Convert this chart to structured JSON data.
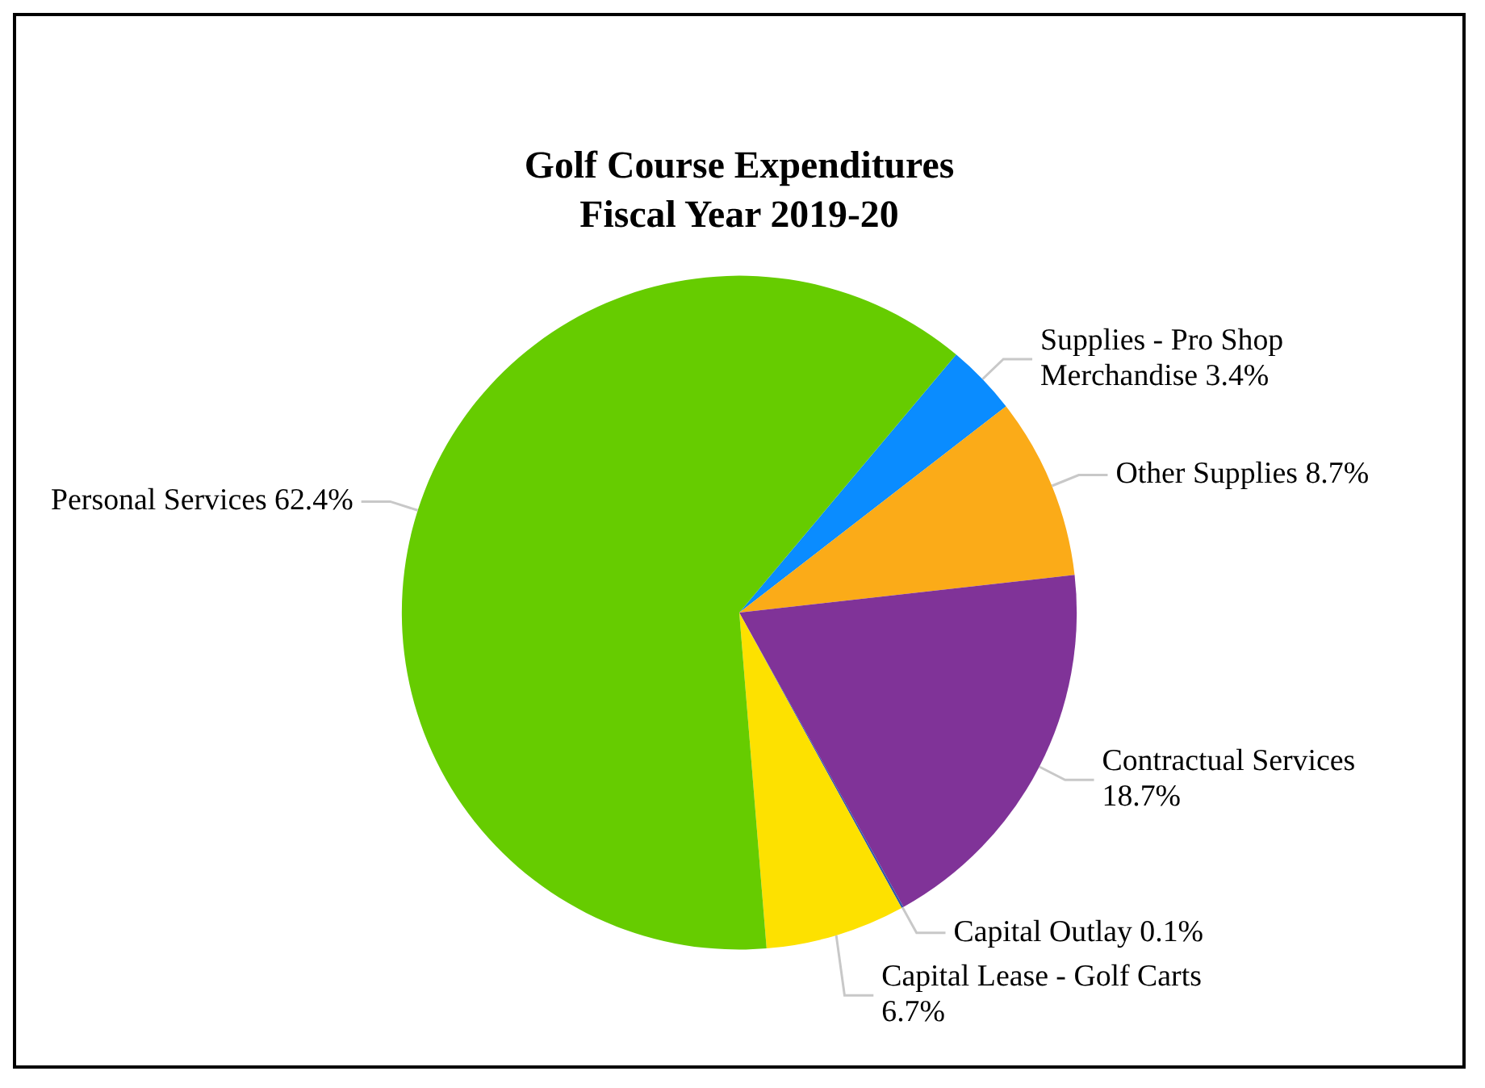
{
  "chart_data": {
    "type": "pie",
    "title": "Golf Course Expenditures",
    "subtitle": "Fiscal Year 2019-20",
    "categories": [
      "Supplies - Pro Shop Merchandise",
      "Other Supplies",
      "Contractual Services",
      "Capital Outlay",
      "Capital Lease - Golf Carts",
      "Personal Services"
    ],
    "values": [
      3.4,
      8.7,
      18.7,
      0.1,
      6.7,
      62.4
    ],
    "colors": [
      "#0a8cff",
      "#fbab18",
      "#803398",
      "#3355aa",
      "#fde100",
      "#66cc00"
    ],
    "value_labels": [
      "3.4%",
      "8.7%",
      "18.7%",
      "0.1%",
      "6.7%",
      "62.4%"
    ],
    "legend": false
  }
}
